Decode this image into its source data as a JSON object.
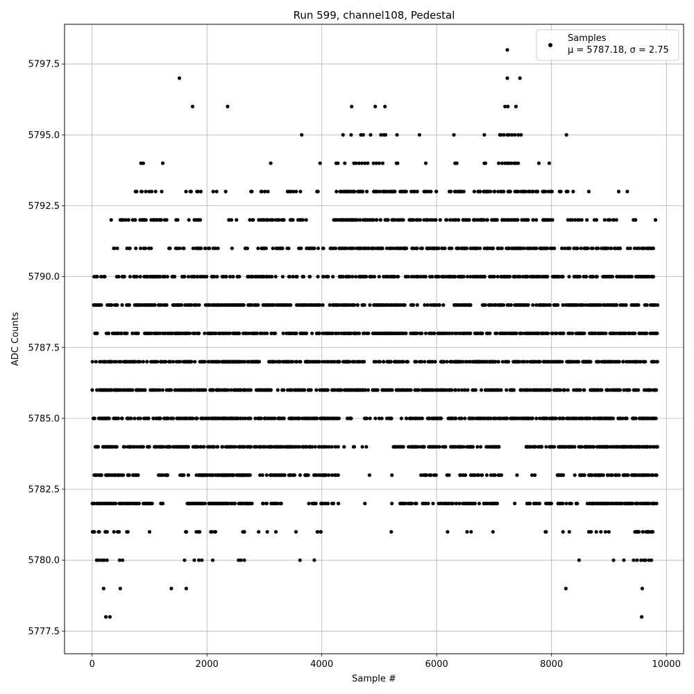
{
  "chart_data": {
    "type": "scatter",
    "title": "Run 599, channel108, Pedestal",
    "xlabel": "Sample #",
    "ylabel": "ADC Counts",
    "xlim": [
      -480,
      10300
    ],
    "ylim": [
      5776.7,
      5798.9
    ],
    "xticks": [
      0,
      2000,
      4000,
      6000,
      8000,
      10000
    ],
    "xtick_labels": [
      "0",
      "2000",
      "4000",
      "6000",
      "8000",
      "10000"
    ],
    "yticks": [
      5777.5,
      5780.0,
      5782.5,
      5785.0,
      5787.5,
      5790.0,
      5792.5,
      5795.0,
      5797.5
    ],
    "ytick_labels": [
      "5777.5",
      "5780.0",
      "5782.5",
      "5785.0",
      "5787.5",
      "5790.0",
      "5792.5",
      "5795.0",
      "5797.5"
    ],
    "grid": true,
    "legend": {
      "position": "top-right",
      "entries": [
        "Samples",
        "μ = 5787.18, σ = 2.75"
      ]
    },
    "n_samples": 9840,
    "series": [
      {
        "name": "Samples",
        "color": "#000000",
        "rows": [
          {
            "y": 5798,
            "x": [
              7230
            ]
          },
          {
            "y": 5797,
            "x": [
              1520,
              7230,
              7450
            ]
          },
          {
            "y": 5796,
            "x": [
              1750,
              2360,
              4520,
              4930,
              5100,
              7190,
              7240,
              7380
            ]
          },
          {
            "y": 5795,
            "x": [
              3650,
              4370,
              4510,
              4680,
              4720,
              4850,
              5030,
              5080,
              5110,
              5310,
              5700,
              6300,
              6830,
              7100,
              7120,
              7170,
              7230,
              7260,
              7310,
              7360,
              7420,
              7470,
              8260
            ]
          },
          {
            "y": 5794,
            "x": [
              850,
              890,
              1230,
              3110,
              3970,
              4250,
              4280,
              4400,
              4560,
              4600,
              4650,
              4700,
              4750,
              4800,
              4900,
              4950,
              5000,
              5060,
              5300,
              5320,
              5810,
              6320,
              6350,
              6830,
              6850,
              7080,
              7140,
              7190,
              7230,
              7260,
              7300,
              7350,
              7380,
              7420,
              7780,
              7960
            ]
          },
          {
            "y": 5793,
            "segs": [
              [
                720,
                1230,
                10
              ],
              [
                1470,
                1930,
                6
              ],
              [
                2100,
                2450,
                3
              ],
              [
                2700,
                3210,
                6
              ],
              [
                3400,
                3700,
                8
              ],
              [
                3890,
                3950,
                2
              ],
              [
                4230,
                5650,
                58
              ],
              [
                5650,
                6500,
                20
              ],
              [
                6650,
                7900,
                50
              ],
              [
                7950,
                8400,
                9
              ]
            ],
            "x": [
              9170,
              9320,
              8650
            ]
          },
          {
            "y": 5792,
            "segs": [
              [
                320,
                1300,
                32
              ],
              [
                1450,
                1900,
                8
              ],
              [
                2300,
                2900,
                7
              ],
              [
                2900,
                3800,
                28
              ],
              [
                4150,
                5700,
                62
              ],
              [
                5700,
                6700,
                32
              ],
              [
                6700,
                7700,
                48
              ],
              [
                7700,
                8500,
                18
              ],
              [
                8500,
                9200,
                10
              ],
              [
                9300,
                9520,
                3
              ]
            ],
            "x": [
              9810
            ]
          },
          {
            "y": 5791,
            "segs": [
              [
                350,
                1200,
                12
              ],
              [
                1300,
                1980,
                18
              ],
              [
                1990,
                2800,
                10
              ],
              [
                2800,
                3800,
                24
              ],
              [
                3800,
                4100,
                8
              ],
              [
                4100,
                5900,
                80
              ],
              [
                5900,
                7000,
                48
              ],
              [
                7000,
                8000,
                42
              ],
              [
                8000,
                9100,
                36
              ],
              [
                9100,
                9800,
                22
              ]
            ]
          },
          {
            "y": 5790,
            "segs": [
              [
                0,
                240,
                8
              ],
              [
                380,
                720,
                8
              ],
              [
                720,
                1500,
                34
              ],
              [
                1500,
                2000,
                18
              ],
              [
                2080,
                3000,
                34
              ],
              [
                3000,
                9800,
                260
              ]
            ]
          },
          {
            "y": 5789,
            "segs": [
              [
                0,
                9850,
                420
              ]
            ]
          },
          {
            "y": 5788,
            "segs": [
              [
                50,
                90,
                5
              ],
              [
                240,
                9850,
                440
              ]
            ]
          },
          {
            "y": 5787,
            "segs": [
              [
                0,
                9850,
                460
              ]
            ]
          },
          {
            "y": 5786,
            "segs": [
              [
                0,
                9850,
                480
              ]
            ]
          },
          {
            "y": 5785,
            "segs": [
              [
                0,
                4300,
                220
              ],
              [
                4400,
                5300,
                18
              ],
              [
                5300,
                9850,
                230
              ]
            ]
          },
          {
            "y": 5784,
            "segs": [
              [
                0,
                4150,
                190
              ],
              [
                4150,
                4300,
                3
              ],
              [
                4380,
                4430,
                1
              ],
              [
                4550,
                4620,
                2
              ],
              [
                4700,
                4780,
                2
              ],
              [
                5220,
                7100,
                90
              ],
              [
                7560,
                9850,
                150
              ]
            ]
          },
          {
            "y": 5783,
            "segs": [
              [
                0,
                800,
                34
              ],
              [
                1150,
                1400,
                8
              ],
              [
                1520,
                1680,
                6
              ],
              [
                1780,
                2800,
                70
              ],
              [
                2850,
                4300,
                52
              ],
              [
                5700,
                6000,
                10
              ],
              [
                6160,
                6220,
                2
              ],
              [
                6400,
                7150,
                20
              ],
              [
                8100,
                8300,
                6
              ],
              [
                8400,
                9850,
                70
              ]
            ],
            "x": [
              4830,
              5220,
              7400,
              7660,
              7710
            ]
          },
          {
            "y": 5782,
            "segs": [
              [
                0,
                1050,
                60
              ],
              [
                1170,
                1250,
                3
              ],
              [
                1550,
                2000,
                24
              ],
              [
                2030,
                2800,
                60
              ],
              [
                2950,
                3300,
                12
              ],
              [
                3770,
                4300,
                22
              ],
              [
                5280,
                5650,
                14
              ],
              [
                5710,
                6200,
                12
              ],
              [
                6200,
                7100,
                40
              ],
              [
                7530,
                8000,
                20
              ],
              [
                8050,
                8450,
                12
              ],
              [
                8600,
                9850,
                80
              ]
            ],
            "x": [
              4750,
              5220,
              7360
            ]
          },
          {
            "y": 5781,
            "segs": [
              [
                0,
                270,
                10
              ],
              [
                350,
                640,
                6
              ],
              [
                1610,
                1650,
                3
              ],
              [
                1800,
                1900,
                4
              ],
              [
                2050,
                2150,
                4
              ],
              [
                2570,
                2700,
                3
              ],
              [
                3920,
                4000,
                4
              ],
              [
                7890,
                7920,
                2
              ],
              [
                9430,
                9820,
                22
              ]
            ],
            "x": [
              1000,
              2900,
              3050,
              3200,
              3550,
              5210,
              6190,
              6530,
              6600,
              6980,
              8200,
              8310,
              8650,
              8690,
              8780,
              8860,
              8940,
              9000
            ]
          },
          {
            "y": 5780,
            "x": [
              80,
              120,
              170,
              210,
              260,
              480,
              530,
              1610,
              1780,
              1860,
              1910,
              2100,
              2550,
              2590,
              2650,
              3620,
              3870,
              8480,
              9080,
              9260,
              9430,
              9490,
              9560,
              9610,
              9640,
              9700,
              9740
            ]
          },
          {
            "y": 5779,
            "x": [
              200,
              490,
              1380,
              1640,
              8250,
              9580
            ]
          },
          {
            "y": 5778,
            "x": [
              240,
              310,
              9570
            ]
          }
        ]
      }
    ]
  }
}
